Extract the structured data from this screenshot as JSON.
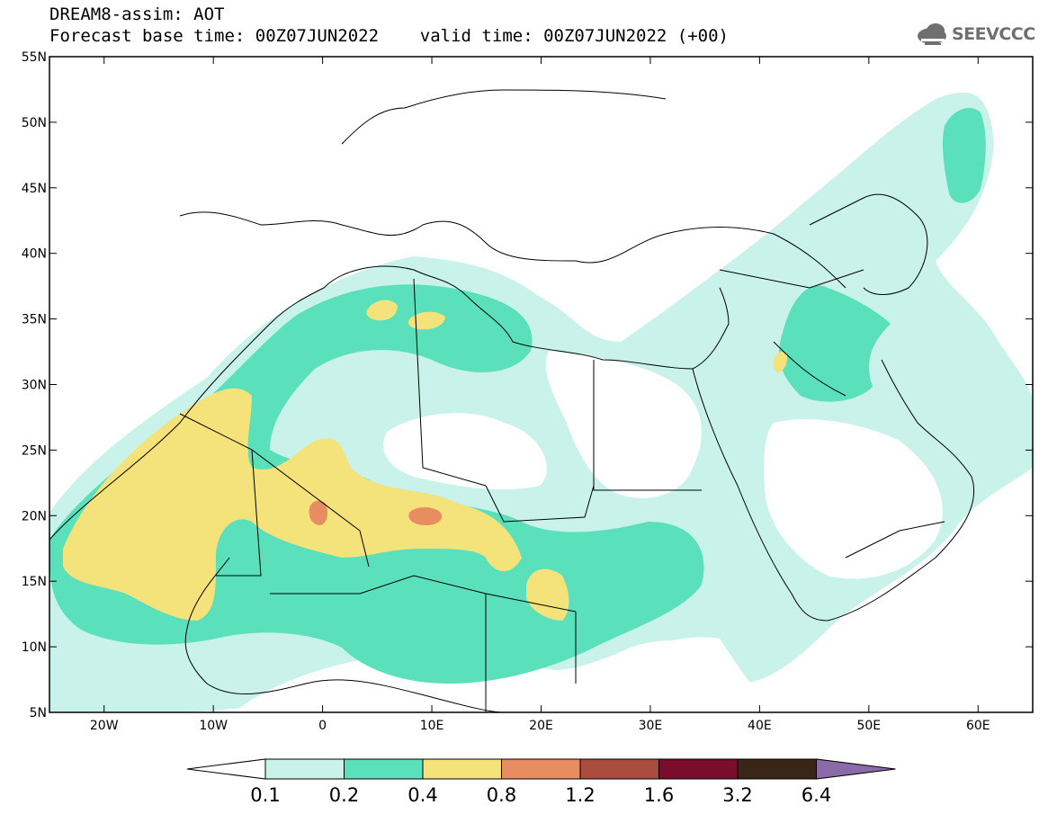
{
  "title": {
    "line1": "DREAM8-assim: AOT",
    "line2": "Forecast base time: 00Z07JUN2022    valid time: 00Z07JUN2022 (+00)"
  },
  "logo": {
    "text": "SEEVCCC",
    "icon": "cloud-icon",
    "color": "#6f6f6f"
  },
  "map": {
    "lon_range": [
      -25,
      65
    ],
    "lat_range": [
      5,
      55
    ],
    "lat_ticks": [
      {
        "value": 55,
        "label": "55N"
      },
      {
        "value": 50,
        "label": "50N"
      },
      {
        "value": 45,
        "label": "45N"
      },
      {
        "value": 40,
        "label": "40N"
      },
      {
        "value": 35,
        "label": "35N"
      },
      {
        "value": 30,
        "label": "30N"
      },
      {
        "value": 25,
        "label": "25N"
      },
      {
        "value": 20,
        "label": "20N"
      },
      {
        "value": 15,
        "label": "15N"
      },
      {
        "value": 10,
        "label": "10N"
      },
      {
        "value": 5,
        "label": "5N"
      }
    ],
    "lon_ticks": [
      {
        "value": -20,
        "label": "20W"
      },
      {
        "value": -10,
        "label": "10W"
      },
      {
        "value": 0,
        "label": "0"
      },
      {
        "value": 10,
        "label": "10E"
      },
      {
        "value": 20,
        "label": "20E"
      },
      {
        "value": 30,
        "label": "30E"
      },
      {
        "value": 40,
        "label": "40E"
      },
      {
        "value": 50,
        "label": "50E"
      },
      {
        "value": 60,
        "label": "60E"
      }
    ]
  },
  "colorbar": {
    "labels": [
      "0.1",
      "0.2",
      "0.4",
      "0.8",
      "1.2",
      "1.6",
      "3.2",
      "6.4"
    ],
    "colors": [
      "#ffffff",
      "#c8f2ea",
      "#5be0bc",
      "#f4e27a",
      "#e88d62",
      "#a94b3d",
      "#7b0d2c",
      "#3a2616",
      "#8a6aa8"
    ]
  },
  "aot_colors": {
    "0.1-0.2": "#c8f2ea",
    "0.2-0.4": "#5be0bc",
    "0.4-0.8": "#f4e27a",
    "0.8-1.2": "#e88d62"
  }
}
